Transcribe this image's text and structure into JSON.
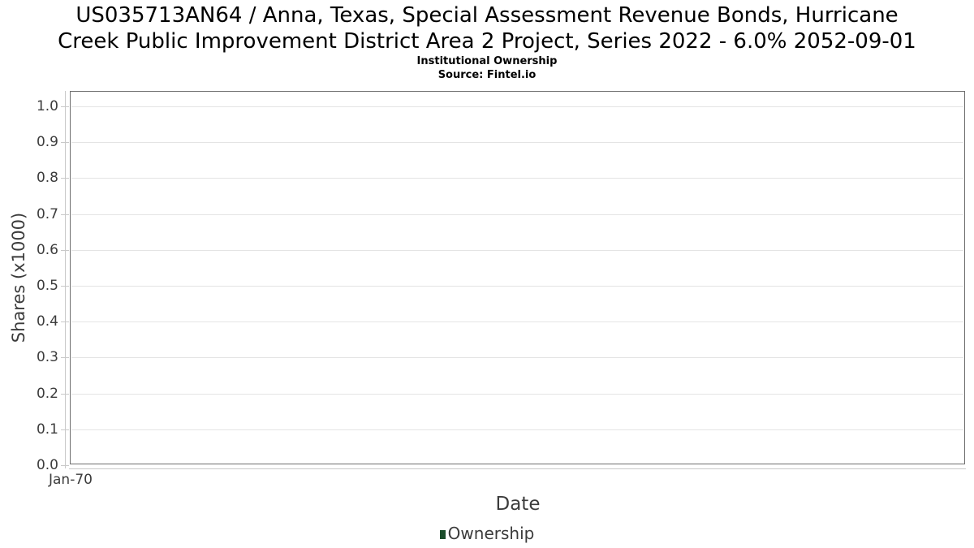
{
  "header": {
    "title_line1": "US035713AN64 / Anna, Texas, Special Assessment Revenue Bonds, Hurricane",
    "title_line2": "Creek Public Improvement District Area 2 Project, Series 2022 - 6.0% 2052-09-01",
    "subtitle": "Institutional Ownership",
    "source": "Source: Fintel.io"
  },
  "chart_data": {
    "type": "line",
    "title": "US035713AN64 / Anna, Texas, Special Assessment Revenue Bonds, Hurricane Creek Public Improvement District Area 2 Project, Series 2022 - 6.0% 2052-09-01",
    "subtitle": "Institutional Ownership",
    "source": "Source: Fintel.io",
    "xlabel": "Date",
    "ylabel": "Shares (x1000)",
    "ylim": [
      0.0,
      1.0
    ],
    "ytick_step": 0.1,
    "yticks": [
      "0.0",
      "0.1",
      "0.2",
      "0.3",
      "0.4",
      "0.5",
      "0.6",
      "0.7",
      "0.8",
      "0.9",
      "1.0"
    ],
    "xticks": [
      "Jan-70"
    ],
    "grid": true,
    "legend_position": "bottom",
    "series": [
      {
        "name": "Ownership",
        "color": "#1b4d2b",
        "x": [],
        "values": []
      }
    ]
  },
  "legend": {
    "items": [
      {
        "label": "Ownership",
        "color": "#1b4d2b"
      }
    ]
  },
  "colors": {
    "background": "#ffffff",
    "title_text": "#000000",
    "axis_text": "#3c3c3c",
    "plot_border": "#6e6e6e",
    "axis_line": "#c9c9c9",
    "gridline": "#e4e4e4",
    "legend_marker": "#1b4d2b"
  }
}
